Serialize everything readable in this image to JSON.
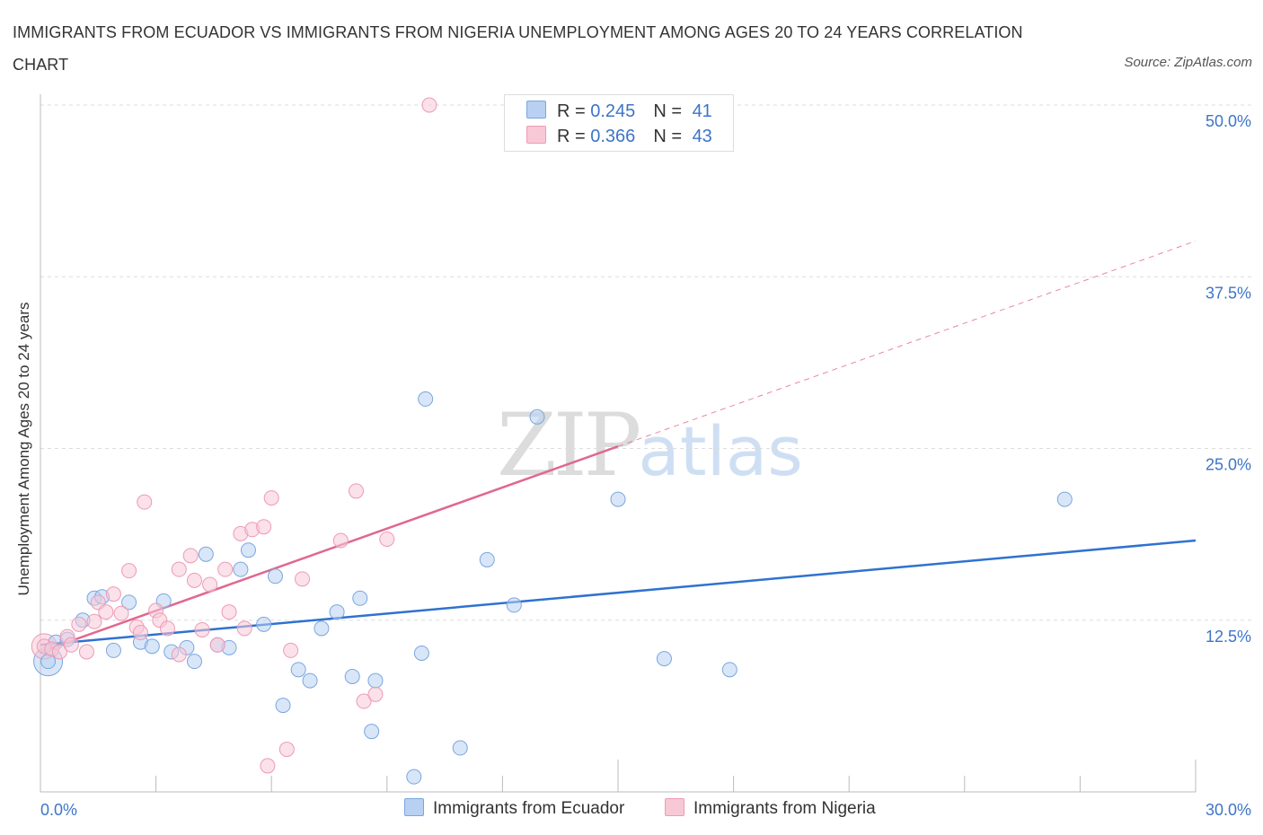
{
  "title": "IMMIGRANTS FROM ECUADOR VS IMMIGRANTS FROM NIGERIA UNEMPLOYMENT AMONG AGES 20 TO 24 YEARS CORRELATION CHART",
  "source": "Source: ZipAtlas.com",
  "watermark": {
    "zip": "ZIP",
    "atlas": "atlas"
  },
  "legend": {
    "rows": [
      {
        "r_label": "R = ",
        "r": "0.245",
        "n_label": "N = ",
        "n": "41"
      },
      {
        "r_label": "R = ",
        "r": "0.366",
        "n_label": "N = ",
        "n": "43"
      }
    ]
  },
  "colors": {
    "ecuador_fill": "#b8d1f3",
    "ecuador_stroke": "#7aa6e0",
    "ecuador_line": "#2f72cf",
    "nigeria_fill": "#f8c8d7",
    "nigeria_stroke": "#ee9ab4",
    "nigeria_line": "#e0688f",
    "axis_text": "#3d74c8",
    "grid": "#dddddd"
  },
  "chart_data": {
    "type": "scatter",
    "title": "IMMIGRANTS FROM ECUADOR VS IMMIGRANTS FROM NIGERIA UNEMPLOYMENT AMONG AGES 20 TO 24 YEARS CORRELATION CHART",
    "xlabel": "",
    "ylabel": "Unemployment Among Ages 20 to 24 years",
    "xlim": [
      0,
      30
    ],
    "ylim": [
      0,
      50
    ],
    "x_tick_labels": [
      {
        "value": 0,
        "label": "0.0%"
      },
      {
        "value": 30,
        "label": "30.0%"
      }
    ],
    "y_tick_labels": [
      {
        "value": 12.5,
        "label": "12.5%"
      },
      {
        "value": 25,
        "label": "25.0%"
      },
      {
        "value": 37.5,
        "label": "37.5%"
      },
      {
        "value": 50,
        "label": "50.0%"
      }
    ],
    "series": [
      {
        "name": "Immigrants from Ecuador",
        "R": 0.245,
        "N": 41,
        "trend": {
          "x0": 0,
          "y0": 10.7,
          "x1": 30,
          "y1": 18.3,
          "dashed_from": null
        },
        "points": [
          [
            0.2,
            9.5
          ],
          [
            0.4,
            10.9
          ],
          [
            0.7,
            11.1
          ],
          [
            1.1,
            12.5
          ],
          [
            1.4,
            14.1
          ],
          [
            1.6,
            14.2
          ],
          [
            1.9,
            10.3
          ],
          [
            2.3,
            13.8
          ],
          [
            2.6,
            10.9
          ],
          [
            2.9,
            10.6
          ],
          [
            3.2,
            13.9
          ],
          [
            3.4,
            10.2
          ],
          [
            3.8,
            10.5
          ],
          [
            4.0,
            9.5
          ],
          [
            4.3,
            17.3
          ],
          [
            4.6,
            10.7
          ],
          [
            4.9,
            10.5
          ],
          [
            5.2,
            16.2
          ],
          [
            5.4,
            17.6
          ],
          [
            5.8,
            12.2
          ],
          [
            6.1,
            15.7
          ],
          [
            6.3,
            6.3
          ],
          [
            6.7,
            8.9
          ],
          [
            7.0,
            8.1
          ],
          [
            7.3,
            11.9
          ],
          [
            7.7,
            13.1
          ],
          [
            8.1,
            8.4
          ],
          [
            8.3,
            14.1
          ],
          [
            8.6,
            4.4
          ],
          [
            8.7,
            8.1
          ],
          [
            9.7,
            1.1
          ],
          [
            9.9,
            10.1
          ],
          [
            10.0,
            28.6
          ],
          [
            10.9,
            3.2
          ],
          [
            11.6,
            16.9
          ],
          [
            12.3,
            13.6
          ],
          [
            12.9,
            27.3
          ],
          [
            15.0,
            21.3
          ],
          [
            16.2,
            9.7
          ],
          [
            17.9,
            8.9
          ],
          [
            26.6,
            21.3
          ]
        ]
      },
      {
        "name": "Immigrants from Nigeria",
        "R": 0.366,
        "N": 43,
        "trend": {
          "x0": 0,
          "y0": 10.2,
          "x1": 30,
          "y1": 40.1,
          "dashed_from": 15
        },
        "points": [
          [
            0.1,
            10.6
          ],
          [
            0.3,
            10.4
          ],
          [
            0.5,
            10.2
          ],
          [
            0.7,
            11.3
          ],
          [
            0.8,
            10.7
          ],
          [
            1.0,
            12.2
          ],
          [
            1.2,
            10.2
          ],
          [
            1.4,
            12.4
          ],
          [
            1.5,
            13.8
          ],
          [
            1.7,
            13.1
          ],
          [
            1.9,
            14.4
          ],
          [
            2.1,
            13.0
          ],
          [
            2.3,
            16.1
          ],
          [
            2.5,
            12.0
          ],
          [
            2.6,
            11.6
          ],
          [
            2.7,
            21.1
          ],
          [
            3.0,
            13.2
          ],
          [
            3.1,
            12.5
          ],
          [
            3.3,
            11.9
          ],
          [
            3.6,
            10.0
          ],
          [
            3.6,
            16.2
          ],
          [
            3.9,
            17.2
          ],
          [
            4.0,
            15.4
          ],
          [
            4.2,
            11.8
          ],
          [
            4.4,
            15.1
          ],
          [
            4.6,
            10.7
          ],
          [
            4.8,
            16.2
          ],
          [
            4.9,
            13.1
          ],
          [
            5.2,
            18.8
          ],
          [
            5.3,
            11.9
          ],
          [
            5.5,
            19.1
          ],
          [
            5.8,
            19.3
          ],
          [
            5.9,
            1.9
          ],
          [
            6.0,
            21.4
          ],
          [
            6.4,
            3.1
          ],
          [
            6.5,
            10.3
          ],
          [
            6.8,
            15.5
          ],
          [
            7.8,
            18.3
          ],
          [
            8.2,
            21.9
          ],
          [
            8.4,
            6.6
          ],
          [
            8.7,
            7.1
          ],
          [
            9.0,
            18.4
          ],
          [
            10.1,
            50.0
          ]
        ]
      }
    ]
  },
  "bottom_legend": {
    "ecuador": "Immigrants from Ecuador",
    "nigeria": "Immigrants from Nigeria"
  }
}
